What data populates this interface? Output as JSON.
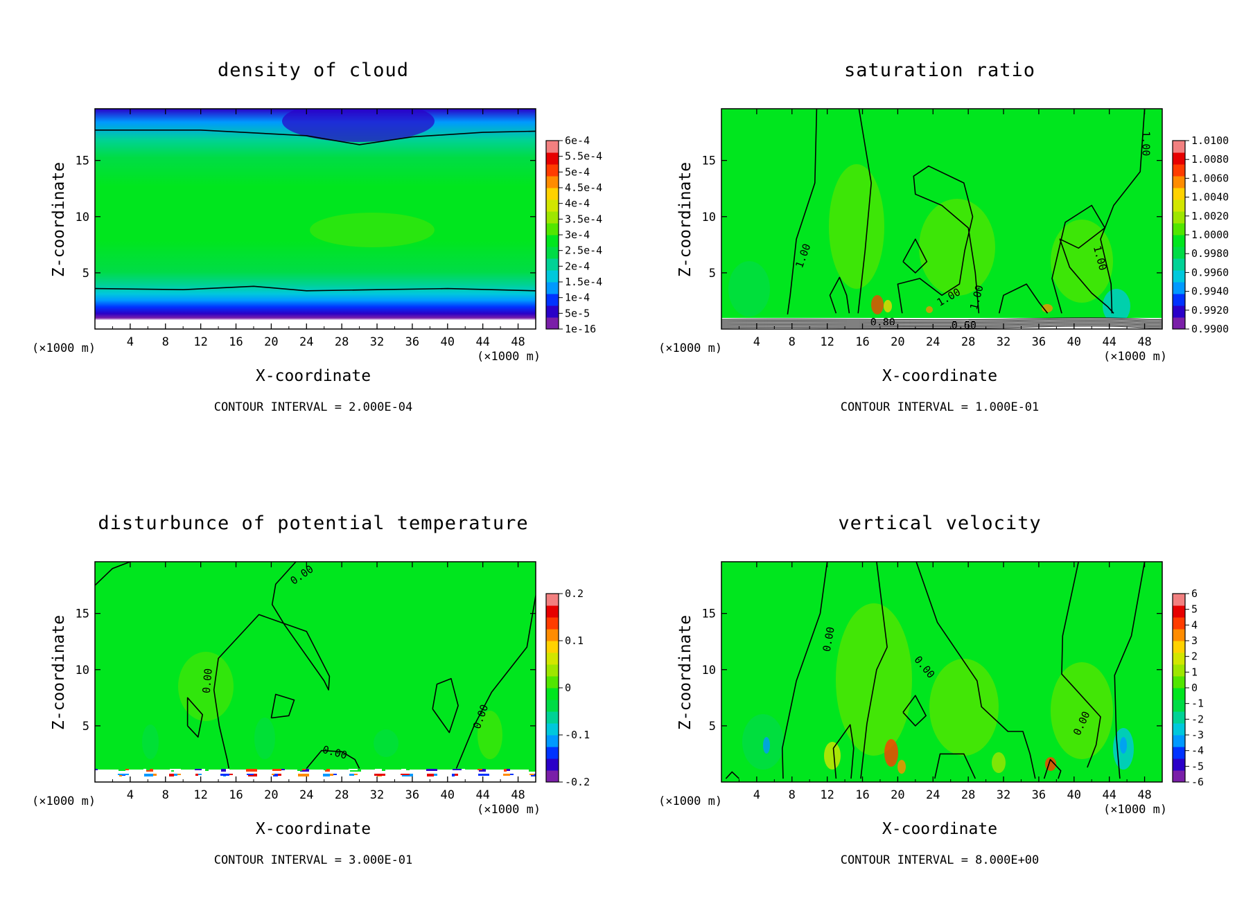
{
  "colors": {
    "background": "#00e61e",
    "contour_line": "#000000",
    "colormap": [
      "#7a1fa8",
      "#2a00c8",
      "#0033ff",
      "#0099ff",
      "#00c8dc",
      "#00d296",
      "#00dc46",
      "#00e61e",
      "#52e600",
      "#9ee600",
      "#d2e600",
      "#ffd200",
      "#ff8c00",
      "#ff3c00",
      "#e60000",
      "#f28080"
    ]
  },
  "chart_data": [
    {
      "type": "heatmap",
      "title": "density of cloud",
      "xlabel": "X-coordinate",
      "ylabel": "Z-coordinate",
      "x_unit_left": "(×1000 m)",
      "x_unit_right": "(×1000 m)",
      "xlim": [
        0,
        50
      ],
      "ylim": [
        0,
        19.6
      ],
      "xticks": [
        "4",
        "8",
        "12",
        "16",
        "20",
        "24",
        "28",
        "32",
        "36",
        "40",
        "44",
        "48"
      ],
      "yticks": [
        "5",
        "10",
        "15"
      ],
      "colorbar_labels": [
        "1e-16",
        "5e-5",
        "1e-4",
        "1.5e-4",
        "2e-4",
        "2.5e-4",
        "3e-4",
        "3.5e-4",
        "4e-4",
        "4.5e-4",
        "5e-4",
        "5.5e-4",
        "6e-4"
      ],
      "contour_interval": "CONTOUR INTERVAL = 2.000E-04",
      "contour_labels": []
    },
    {
      "type": "heatmap",
      "title": "saturation ratio",
      "xlabel": "X-coordinate",
      "ylabel": "Z-coordinate",
      "x_unit_left": "(×1000 m)",
      "x_unit_right": "(×1000 m)",
      "xlim": [
        0,
        50
      ],
      "ylim": [
        0,
        19.6
      ],
      "xticks": [
        "4",
        "8",
        "12",
        "16",
        "20",
        "24",
        "28",
        "32",
        "36",
        "40",
        "44",
        "48"
      ],
      "yticks": [
        "5",
        "10",
        "15"
      ],
      "colorbar_labels": [
        "0.9900",
        "0.9920",
        "0.9940",
        "0.9960",
        "0.9980",
        "1.0000",
        "1.0020",
        "1.0040",
        "1.0060",
        "1.0080",
        "1.0100"
      ],
      "contour_interval": "CONTOUR INTERVAL = 1.000E-01",
      "contour_labels": [
        {
          "text": "1.00",
          "x": 9.3,
          "z": 6.5,
          "angle": -70
        },
        {
          "text": "1.00",
          "x": 25.8,
          "z": 2.8,
          "angle": -30
        },
        {
          "text": "1.00",
          "x": 29.0,
          "z": 2.8,
          "angle": -75
        },
        {
          "text": "1.00",
          "x": 42.9,
          "z": 6.3,
          "angle": 75
        },
        {
          "text": "1.00",
          "x": 48.1,
          "z": 16.5,
          "angle": 90
        },
        {
          "text": "0.80",
          "x": 18.3,
          "z": 0.6,
          "angle": 0
        },
        {
          "text": "0.60",
          "x": 27.5,
          "z": 0.3,
          "angle": 0
        }
      ]
    },
    {
      "type": "heatmap",
      "title": "disturbunce of potential temperature",
      "xlabel": "X-coordinate",
      "ylabel": "Z-coordinate",
      "x_unit_left": "(×1000 m)",
      "x_unit_right": "(×1000 m)",
      "xlim": [
        0,
        50
      ],
      "ylim": [
        0,
        19.6
      ],
      "xticks": [
        "4",
        "8",
        "12",
        "16",
        "20",
        "24",
        "28",
        "32",
        "36",
        "40",
        "44",
        "48"
      ],
      "yticks": [
        "5",
        "10",
        "15"
      ],
      "colorbar_labels": [
        "-0.2",
        "-0.1",
        "0",
        "0.1",
        "0.2"
      ],
      "contour_interval": "CONTOUR INTERVAL = 3.000E-01",
      "contour_labels": [
        {
          "text": "0.00",
          "x": 23.5,
          "z": 18.4,
          "angle": -35
        },
        {
          "text": "0.00",
          "x": 12.8,
          "z": 9.0,
          "angle": -85
        },
        {
          "text": "0.00",
          "x": 27.2,
          "z": 2.6,
          "angle": 15
        },
        {
          "text": "0.00",
          "x": 43.8,
          "z": 5.8,
          "angle": -70
        }
      ]
    },
    {
      "type": "heatmap",
      "title": "vertical velocity",
      "xlabel": "X-coordinate",
      "ylabel": "Z-coordinate",
      "x_unit_left": "(×1000 m)",
      "x_unit_right": "(×1000 m)",
      "xlim": [
        0,
        50
      ],
      "ylim": [
        0,
        19.6
      ],
      "xticks": [
        "4",
        "8",
        "12",
        "16",
        "20",
        "24",
        "28",
        "32",
        "36",
        "40",
        "44",
        "48"
      ],
      "yticks": [
        "5",
        "10",
        "15"
      ],
      "colorbar_labels": [
        "-6",
        "-5",
        "-4",
        "-3",
        "-2",
        "-1",
        "0",
        "1",
        "2",
        "3",
        "4",
        "5",
        "6"
      ],
      "contour_interval": "CONTOUR INTERVAL = 8.000E+00",
      "contour_labels": [
        {
          "text": "0.00",
          "x": 12.2,
          "z": 12.7,
          "angle": -80
        },
        {
          "text": "0.00",
          "x": 23.0,
          "z": 10.2,
          "angle": 50
        },
        {
          "text": "0.00",
          "x": 40.9,
          "z": 5.2,
          "angle": -65
        }
      ]
    }
  ]
}
